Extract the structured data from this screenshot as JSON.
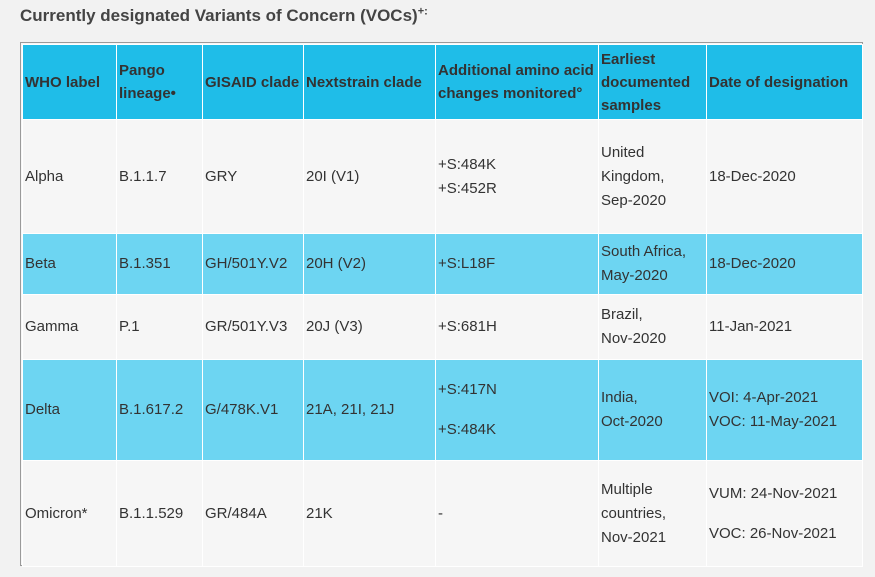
{
  "heading": {
    "text": "Currently designated Variants of Concern (VOCs)",
    "sup": "+:"
  },
  "table": {
    "headers": [
      "WHO label",
      "Pango lineage•",
      "GISAID clade",
      "Nextstrain clade",
      "Additional amino acid changes monitored°",
      "Earliest documented samples",
      "Date of designation"
    ],
    "rows": [
      {
        "who": "Alpha",
        "pango": "B.1.1.7",
        "gisaid": "GRY",
        "nextstrain": "20I (V1)",
        "amino": [
          "+S:484K",
          "+S:452R"
        ],
        "samples": [
          "United",
          "Kingdom,",
          "Sep-2020"
        ],
        "designation": [
          "18-Dec-2020"
        ]
      },
      {
        "who": "Beta",
        "pango": "B.1.351",
        "gisaid": "GH/501Y.V2",
        "nextstrain": "20H (V2)",
        "amino": [
          "+S:L18F"
        ],
        "samples": [
          "South Africa,",
          "May-2020"
        ],
        "designation": [
          "18-Dec-2020"
        ]
      },
      {
        "who": "Gamma",
        "pango": "P.1",
        "gisaid": "GR/501Y.V3",
        "nextstrain": "20J (V3)",
        "amino": [
          "+S:681H"
        ],
        "samples": [
          "Brazil,",
          "Nov-2020"
        ],
        "designation": [
          "11-Jan-2021"
        ]
      },
      {
        "who": "Delta",
        "pango": "B.1.617.2",
        "gisaid": "G/478K.V1",
        "nextstrain": "21A, 21I, 21J",
        "amino": [
          "+S:417N",
          "+S:484K"
        ],
        "samples": [
          "India,",
          "Oct-2020"
        ],
        "designation": [
          "VOI: 4-Apr-2021",
          "VOC: 11-May-2021"
        ]
      },
      {
        "who": "Omicron*",
        "pango": "B.1.1.529",
        "gisaid": "GR/484A",
        "nextstrain": "21K",
        "amino": [
          "-"
        ],
        "samples": [
          "Multiple",
          "countries,",
          "Nov-2021"
        ],
        "designation": [
          "VUM: 24-Nov-2021",
          "VOC: 26-Nov-2021"
        ]
      }
    ]
  }
}
